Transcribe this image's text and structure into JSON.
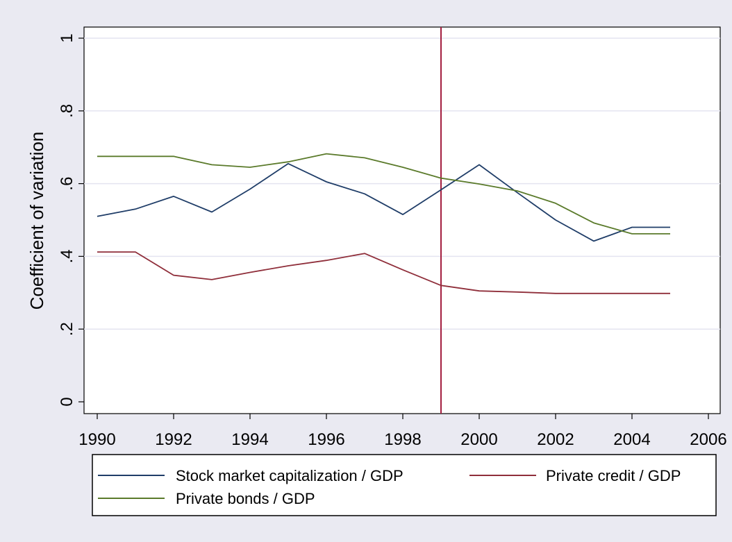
{
  "colors": {
    "background": "#eaeaf2",
    "plot_bg": "#ffffff",
    "grid": "#e4e4f0",
    "stock": "#1f3d68",
    "credit": "#8f2e3a",
    "bonds": "#5a7a2a",
    "vline": "#a31d3f"
  },
  "chart_data": {
    "type": "line",
    "title": "",
    "xlabel": "",
    "ylabel": "Coefficient of variation",
    "xlim": [
      1990,
      2006
    ],
    "ylim": [
      0,
      1
    ],
    "xticks": [
      1990,
      1992,
      1994,
      1996,
      1998,
      2000,
      2002,
      2004,
      2006
    ],
    "yticks": [
      0,
      0.2,
      0.4,
      0.6,
      0.8,
      1
    ],
    "xtick_labels": [
      "1990",
      "1992",
      "1994",
      "1996",
      "1998",
      "2000",
      "2002",
      "2004",
      "2006"
    ],
    "ytick_labels": [
      "0",
      ".2",
      ".4",
      ".6",
      ".8",
      "1"
    ],
    "grid": true,
    "legend_position": "bottom",
    "reference_line_x": 1999,
    "x": [
      1990,
      1991,
      1992,
      1993,
      1994,
      1995,
      1996,
      1997,
      1998,
      1999,
      2000,
      2001,
      2002,
      2003,
      2004,
      2005
    ],
    "series": [
      {
        "name": "Stock market capitalization / GDP",
        "color": "#1f3d68",
        "values": [
          0.51,
          0.53,
          0.565,
          0.522,
          0.585,
          0.655,
          0.605,
          0.572,
          0.515,
          0.583,
          0.652,
          0.575,
          0.5,
          0.442,
          0.48,
          0.48
        ]
      },
      {
        "name": "Private credit / GDP",
        "color": "#8f2e3a",
        "values": [
          0.412,
          0.412,
          0.348,
          0.336,
          0.356,
          0.374,
          0.389,
          0.408,
          0.363,
          0.32,
          0.305,
          0.302,
          0.298,
          0.298,
          0.298,
          0.298
        ]
      },
      {
        "name": "Private bonds / GDP",
        "color": "#5a7a2a",
        "values": [
          0.675,
          0.675,
          0.675,
          0.652,
          0.645,
          0.66,
          0.682,
          0.671,
          0.645,
          0.615,
          0.599,
          0.58,
          0.546,
          0.492,
          0.462,
          0.462
        ]
      }
    ]
  }
}
